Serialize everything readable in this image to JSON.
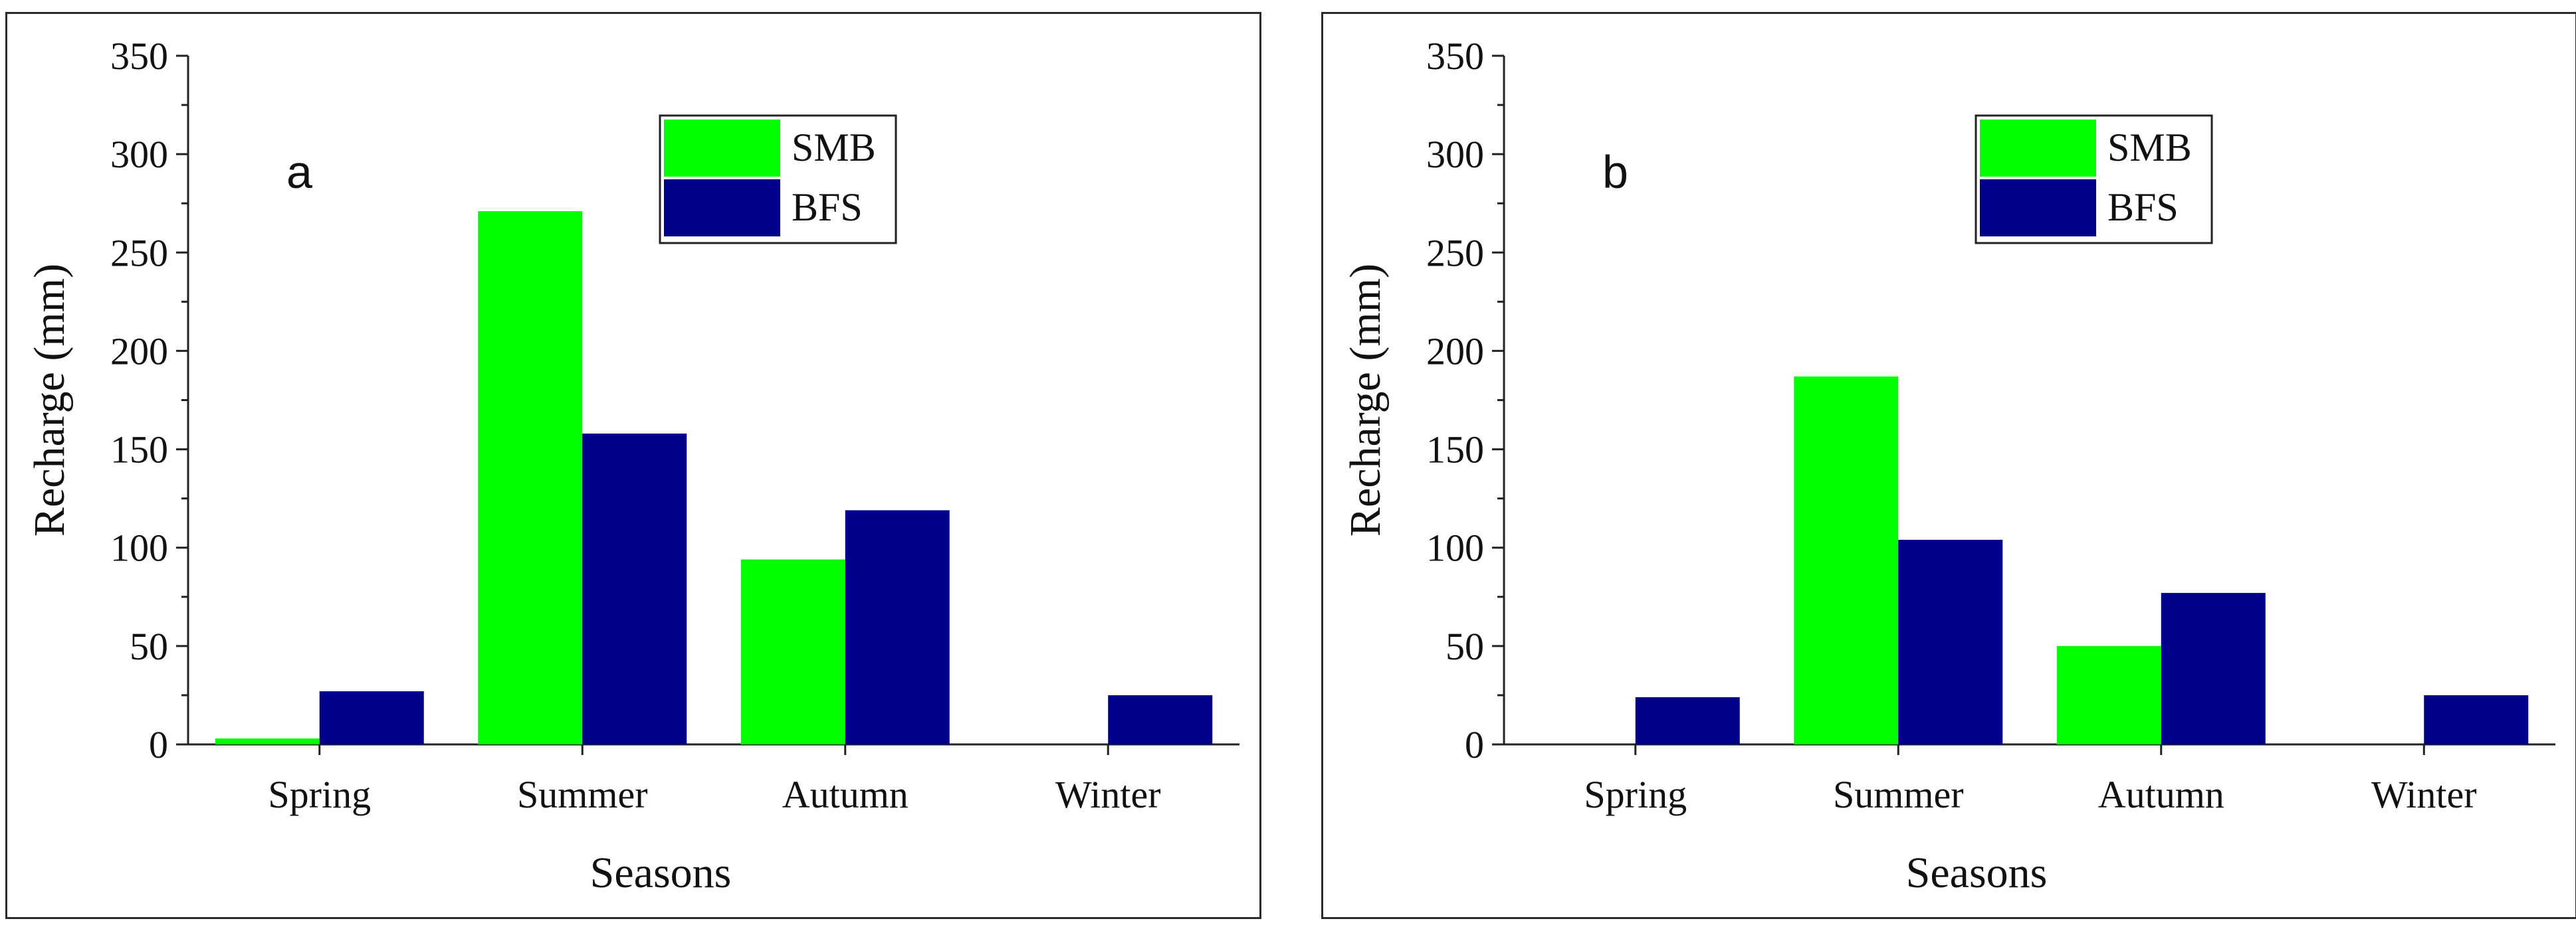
{
  "chart_data": [
    {
      "type": "bar",
      "panel_label": "a",
      "categories": [
        "Spring",
        "Summer",
        "Autumn",
        "Winter"
      ],
      "series": [
        {
          "name": "SMB",
          "color": "#00ff00",
          "values": [
            3,
            271,
            94,
            0
          ]
        },
        {
          "name": "BFS",
          "color": "#00008b",
          "values": [
            27,
            158,
            119,
            25
          ]
        }
      ],
      "xlabel": "Seasons",
      "ylabel": "Recharge (mm)",
      "ylim": [
        0,
        350
      ],
      "yticks": [
        0,
        50,
        100,
        150,
        200,
        250,
        300,
        350
      ],
      "grid": false,
      "legend_position": "top-right"
    },
    {
      "type": "bar",
      "panel_label": "b",
      "categories": [
        "Spring",
        "Summer",
        "Autumn",
        "Winter"
      ],
      "series": [
        {
          "name": "SMB",
          "color": "#00ff00",
          "values": [
            0,
            187,
            50,
            0
          ]
        },
        {
          "name": "BFS",
          "color": "#00008b",
          "values": [
            24,
            104,
            77,
            25
          ]
        }
      ],
      "xlabel": "Seasons",
      "ylabel": "Recharge (mm)",
      "ylim": [
        0,
        350
      ],
      "yticks": [
        0,
        50,
        100,
        150,
        200,
        250,
        300,
        350
      ],
      "grid": false,
      "legend_position": "top-right"
    }
  ]
}
